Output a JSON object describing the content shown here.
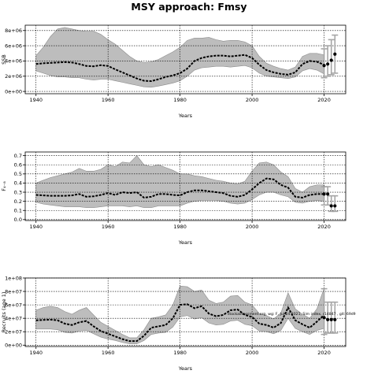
{
  "title": "MSY approach: Fmsy",
  "footnote": "stockassessment.org, wg: F, Jul 24 2021, Sim index, r14847 , git: 69d9",
  "colors": {
    "band": "#bdbdbd",
    "band_edge": "#8c8c8c",
    "line": "#000000",
    "point": "#000000",
    "errorbar": "#a6a6a6",
    "grid": "#000000"
  },
  "chart_data": [
    {
      "type": "area",
      "ylabel": "SSB",
      "xlabel": "Years",
      "xlim": [
        1937,
        2026
      ],
      "ylim": [
        -300000,
        8700000
      ],
      "xticks": [
        1940,
        1960,
        1980,
        2000,
        2020
      ],
      "xtick_labels": [
        "1940",
        "1960",
        "1980",
        "2000",
        "2020"
      ],
      "yticks": [
        0,
        2000000,
        4000000,
        6000000,
        8000000
      ],
      "ytick_labels": [
        "0e+00",
        "2e+06",
        "4e+06",
        "6e+06",
        "8e+06"
      ],
      "grid": true,
      "x": [
        1940,
        1942,
        1944,
        1946,
        1948,
        1950,
        1952,
        1954,
        1956,
        1958,
        1960,
        1962,
        1964,
        1966,
        1968,
        1970,
        1972,
        1974,
        1976,
        1978,
        1980,
        1982,
        1984,
        1986,
        1988,
        1990,
        1992,
        1994,
        1996,
        1998,
        2000,
        2002,
        2004,
        2006,
        2008,
        2010,
        2012,
        2014,
        2016,
        2018,
        2020
      ],
      "y": [
        3600000,
        3700000,
        3750000,
        3800000,
        3850000,
        3800000,
        3600000,
        3350000,
        3300000,
        3450000,
        3350000,
        2900000,
        2500000,
        2100000,
        1700000,
        1400000,
        1350000,
        1600000,
        1900000,
        2100000,
        2400000,
        3000000,
        4000000,
        4400000,
        4600000,
        4700000,
        4700000,
        4600000,
        4700000,
        4800000,
        4400000,
        3500000,
        2800000,
        2500000,
        2300000,
        2200000,
        2500000,
        3600000,
        4000000,
        3900000,
        3500000
      ],
      "lower": [
        2700000,
        2400000,
        2100000,
        1900000,
        1900000,
        1800000,
        1800000,
        1600000,
        1500000,
        1600000,
        1600000,
        1400000,
        1200000,
        1000000,
        800000,
        600000,
        550000,
        700000,
        900000,
        1100000,
        1400000,
        2000000,
        2800000,
        3100000,
        3200000,
        3300000,
        3300000,
        3200000,
        3300000,
        3400000,
        3100000,
        2400000,
        2000000,
        1900000,
        1800000,
        1700000,
        1900000,
        2700000,
        3000000,
        2800000,
        2300000
      ],
      "upper": [
        4700000,
        5800000,
        7200000,
        8200000,
        8400000,
        8200000,
        8000000,
        7900000,
        7900000,
        7500000,
        6800000,
        6200000,
        5400000,
        4600000,
        4000000,
        3800000,
        3900000,
        4200000,
        4700000,
        5200000,
        5800000,
        6700000,
        7000000,
        7000000,
        7100000,
        6800000,
        6600000,
        6700000,
        6700000,
        6500000,
        6000000,
        4600000,
        3700000,
        3300000,
        3000000,
        2800000,
        3200000,
        4600000,
        5000000,
        5000000,
        4800000
      ],
      "points": [
        {
          "x": 2020,
          "y": 3400000
        },
        {
          "x": 2021,
          "y": 3600000
        },
        {
          "x": 2022,
          "y": 4100000
        },
        {
          "x": 2023,
          "y": 4900000
        }
      ],
      "errorbars": [
        {
          "x": 2020,
          "lo": 1800000,
          "hi": 5600000
        },
        {
          "x": 2021,
          "lo": 2000000,
          "hi": 6000000
        },
        {
          "x": 2022,
          "lo": 2200000,
          "hi": 6800000
        },
        {
          "x": 2023,
          "lo": 2400000,
          "hi": 7400000
        }
      ]
    },
    {
      "type": "area",
      "ylabel": "F₄₋₈",
      "xlabel": "Years",
      "xlim": [
        1937,
        2026
      ],
      "ylim": [
        -0.01,
        0.74
      ],
      "xticks": [
        1940,
        1960,
        1980,
        2000,
        2020
      ],
      "xtick_labels": [
        "1940",
        "1960",
        "1980",
        "2000",
        "2020"
      ],
      "yticks": [
        0.0,
        0.1,
        0.2,
        0.3,
        0.4,
        0.5,
        0.6,
        0.7
      ],
      "ytick_labels": [
        "0.0",
        "0.1",
        "0.2",
        "0.3",
        "0.4",
        "0.5",
        "0.6",
        "0.7"
      ],
      "grid": true,
      "x": [
        1940,
        1942,
        1944,
        1946,
        1948,
        1950,
        1952,
        1954,
        1956,
        1958,
        1960,
        1962,
        1964,
        1966,
        1968,
        1970,
        1972,
        1974,
        1976,
        1978,
        1980,
        1982,
        1984,
        1986,
        1988,
        1990,
        1992,
        1994,
        1996,
        1998,
        2000,
        2002,
        2004,
        2006,
        2008,
        2010,
        2012,
        2014,
        2016,
        2018,
        2020
      ],
      "y": [
        0.27,
        0.265,
        0.26,
        0.26,
        0.26,
        0.265,
        0.28,
        0.25,
        0.255,
        0.27,
        0.29,
        0.27,
        0.3,
        0.29,
        0.3,
        0.24,
        0.25,
        0.28,
        0.28,
        0.27,
        0.265,
        0.3,
        0.32,
        0.32,
        0.31,
        0.3,
        0.29,
        0.26,
        0.25,
        0.27,
        0.33,
        0.4,
        0.45,
        0.44,
        0.38,
        0.35,
        0.25,
        0.24,
        0.27,
        0.28,
        0.28
      ],
      "lower": [
        0.19,
        0.17,
        0.16,
        0.15,
        0.14,
        0.14,
        0.14,
        0.13,
        0.13,
        0.14,
        0.15,
        0.15,
        0.15,
        0.14,
        0.15,
        0.13,
        0.13,
        0.15,
        0.15,
        0.15,
        0.15,
        0.18,
        0.2,
        0.21,
        0.21,
        0.21,
        0.2,
        0.18,
        0.17,
        0.18,
        0.22,
        0.27,
        0.3,
        0.3,
        0.27,
        0.25,
        0.19,
        0.18,
        0.2,
        0.21,
        0.2
      ],
      "upper": [
        0.4,
        0.43,
        0.46,
        0.48,
        0.5,
        0.52,
        0.56,
        0.53,
        0.53,
        0.55,
        0.6,
        0.58,
        0.63,
        0.62,
        0.7,
        0.6,
        0.58,
        0.6,
        0.57,
        0.54,
        0.5,
        0.5,
        0.48,
        0.47,
        0.45,
        0.43,
        0.42,
        0.4,
        0.39,
        0.42,
        0.53,
        0.62,
        0.63,
        0.6,
        0.52,
        0.47,
        0.34,
        0.3,
        0.36,
        0.38,
        0.38
      ],
      "points": [
        {
          "x": 2020,
          "y": 0.28
        },
        {
          "x": 2021,
          "y": 0.28
        },
        {
          "x": 2022,
          "y": 0.15
        },
        {
          "x": 2023,
          "y": 0.15
        }
      ],
      "errorbars": [
        {
          "x": 2020,
          "lo": 0.16,
          "hi": 0.36
        },
        {
          "x": 2021,
          "lo": 0.16,
          "hi": 0.36
        },
        {
          "x": 2022,
          "lo": 0.09,
          "hi": 0.26
        },
        {
          "x": 2023,
          "lo": 0.09,
          "hi": 0.26
        }
      ]
    },
    {
      "type": "area",
      "ylabel": "Recruits (age 1)",
      "xlabel": "Years",
      "xlim": [
        1937,
        2026
      ],
      "ylim": [
        -2000000,
        100000000
      ],
      "xticks": [
        1940,
        1960,
        1980,
        2000,
        2020
      ],
      "xtick_labels": [
        "1940",
        "1960",
        "1980",
        "2000",
        "2020"
      ],
      "yticks": [
        0,
        20000000,
        40000000,
        60000000,
        80000000,
        100000000
      ],
      "ytick_labels": [
        "0e+00",
        "2e+07",
        "4e+07",
        "6e+07",
        "8e+07",
        "1e+08"
      ],
      "grid": true,
      "x": [
        1940,
        1942,
        1944,
        1946,
        1948,
        1950,
        1952,
        1954,
        1956,
        1958,
        1960,
        1962,
        1964,
        1966,
        1968,
        1970,
        1972,
        1974,
        1976,
        1978,
        1980,
        1982,
        1984,
        1986,
        1988,
        1990,
        1992,
        1994,
        1996,
        1998,
        2000,
        2002,
        2004,
        2006,
        2008,
        2010,
        2012,
        2014,
        2016,
        2018,
        2020
      ],
      "y": [
        37000000,
        37500000,
        38000000,
        37000000,
        32000000,
        30000000,
        34000000,
        36000000,
        28000000,
        21000000,
        17000000,
        13000000,
        9000000,
        6000000,
        6000000,
        14000000,
        26000000,
        28000000,
        30000000,
        40000000,
        60000000,
        61000000,
        55000000,
        58000000,
        47000000,
        43000000,
        45000000,
        52000000,
        53000000,
        45000000,
        42000000,
        32000000,
        30000000,
        26000000,
        33000000,
        56000000,
        37000000,
        31000000,
        26000000,
        35000000,
        45000000
      ],
      "lower": [
        24000000,
        24000000,
        24000000,
        23000000,
        19000000,
        18000000,
        21000000,
        22000000,
        17000000,
        12000000,
        9000000,
        7000000,
        4000000,
        2000000,
        2000000,
        7000000,
        16000000,
        18000000,
        19000000,
        27000000,
        42000000,
        44000000,
        39000000,
        41000000,
        33000000,
        30000000,
        31000000,
        36000000,
        37000000,
        31000000,
        29000000,
        21000000,
        20000000,
        17000000,
        22000000,
        40000000,
        25000000,
        20000000,
        16000000,
        22000000,
        25000000
      ],
      "upper": [
        52000000,
        56000000,
        58000000,
        56000000,
        50000000,
        46000000,
        52000000,
        56000000,
        45000000,
        34000000,
        28000000,
        22000000,
        16000000,
        11000000,
        11000000,
        23000000,
        40000000,
        42000000,
        45000000,
        60000000,
        88000000,
        87000000,
        80000000,
        82000000,
        67000000,
        62000000,
        64000000,
        73000000,
        74000000,
        64000000,
        60000000,
        47000000,
        44000000,
        39000000,
        48000000,
        78000000,
        54000000,
        46000000,
        40000000,
        54000000,
        85000000
      ],
      "points": [
        {
          "x": 2020,
          "y": 41000000
        },
        {
          "x": 2021,
          "y": 38000000
        },
        {
          "x": 2022,
          "y": 38000000
        },
        {
          "x": 2023,
          "y": 38000000
        }
      ],
      "errorbars": [
        {
          "x": 2020,
          "lo": 16000000,
          "hi": 84000000
        },
        {
          "x": 2021,
          "lo": 18000000,
          "hi": 64000000
        },
        {
          "x": 2022,
          "lo": 18000000,
          "hi": 64000000
        },
        {
          "x": 2023,
          "lo": 18000000,
          "hi": 64000000
        }
      ]
    }
  ]
}
